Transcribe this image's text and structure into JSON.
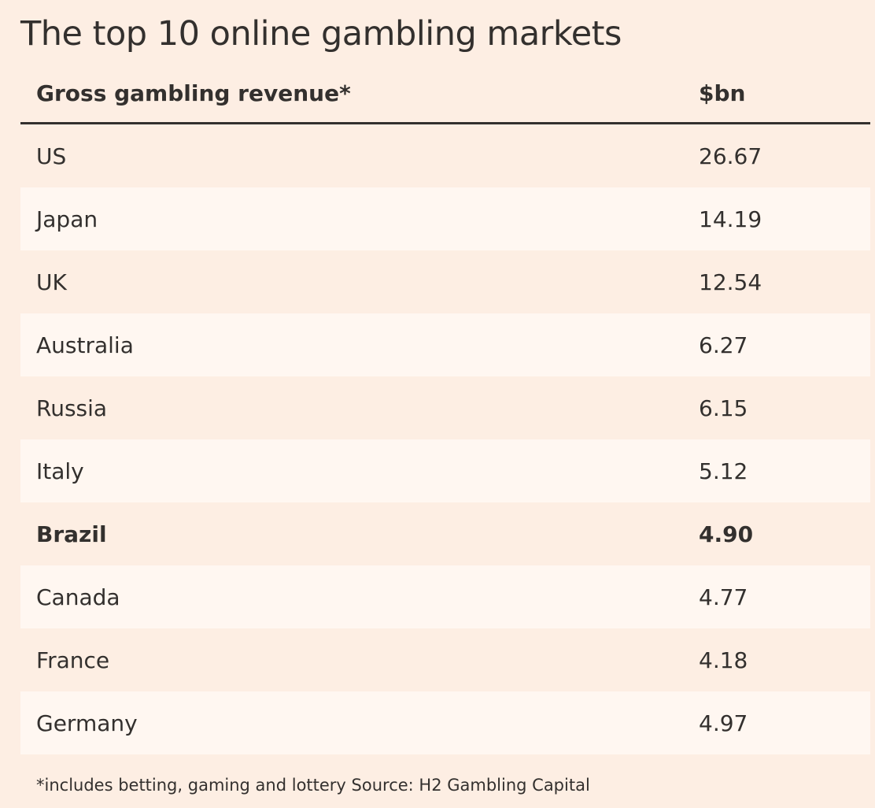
{
  "chart_data": {
    "type": "table",
    "title": "The top 10 online gambling markets",
    "columns": [
      "Gross gambling revenue*",
      "$bn"
    ],
    "rows": [
      {
        "country": "US",
        "value": "26.67"
      },
      {
        "country": "Japan",
        "value": "14.19"
      },
      {
        "country": "UK",
        "value": "12.54"
      },
      {
        "country": "Australia",
        "value": "6.27"
      },
      {
        "country": "Russia",
        "value": "6.15"
      },
      {
        "country": "Italy",
        "value": "5.12"
      },
      {
        "country": "Brazil",
        "value": "4.90",
        "highlight": true
      },
      {
        "country": "Canada",
        "value": "4.77"
      },
      {
        "country": "France",
        "value": "4.18"
      },
      {
        "country": "Germany",
        "value": "4.97"
      }
    ],
    "footnote": "*includes betting, gaming and lottery Source: H2 Gambling Capital"
  },
  "colors": {
    "background": "#fdeee3",
    "alt_row": "#fff7f1",
    "text": "#33302e"
  }
}
